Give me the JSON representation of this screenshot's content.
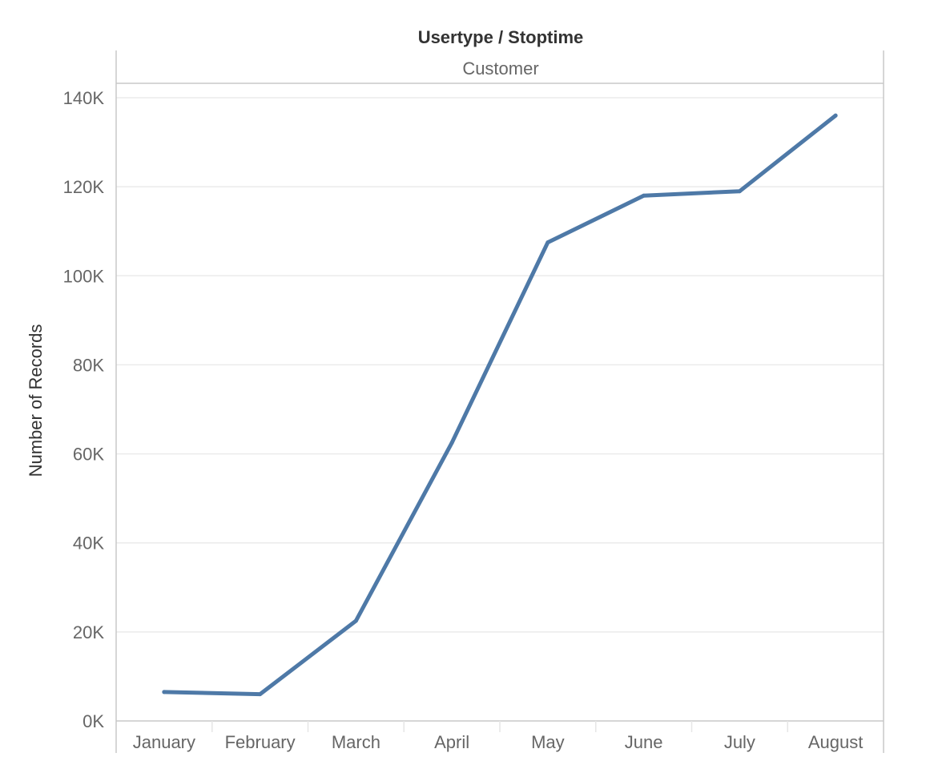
{
  "chart_data": {
    "type": "line",
    "title": "Usertype / Stoptime",
    "pane_header": "Customer",
    "xlabel": "",
    "ylabel": "Number of Records",
    "categories": [
      "January",
      "February",
      "March",
      "April",
      "May",
      "June",
      "July",
      "August"
    ],
    "series": [
      {
        "values": [
          6500,
          6000,
          22500,
          62500,
          107500,
          118000,
          119000,
          136000
        ]
      }
    ],
    "ylim": [
      0,
      140000
    ],
    "yticks": [
      0,
      20000,
      40000,
      60000,
      80000,
      100000,
      120000,
      140000
    ],
    "ytick_labels": [
      "0K",
      "20K",
      "40K",
      "60K",
      "80K",
      "100K",
      "120K",
      "140K"
    ],
    "grid": true,
    "legend": "none",
    "line_color": "#4e79a7"
  }
}
